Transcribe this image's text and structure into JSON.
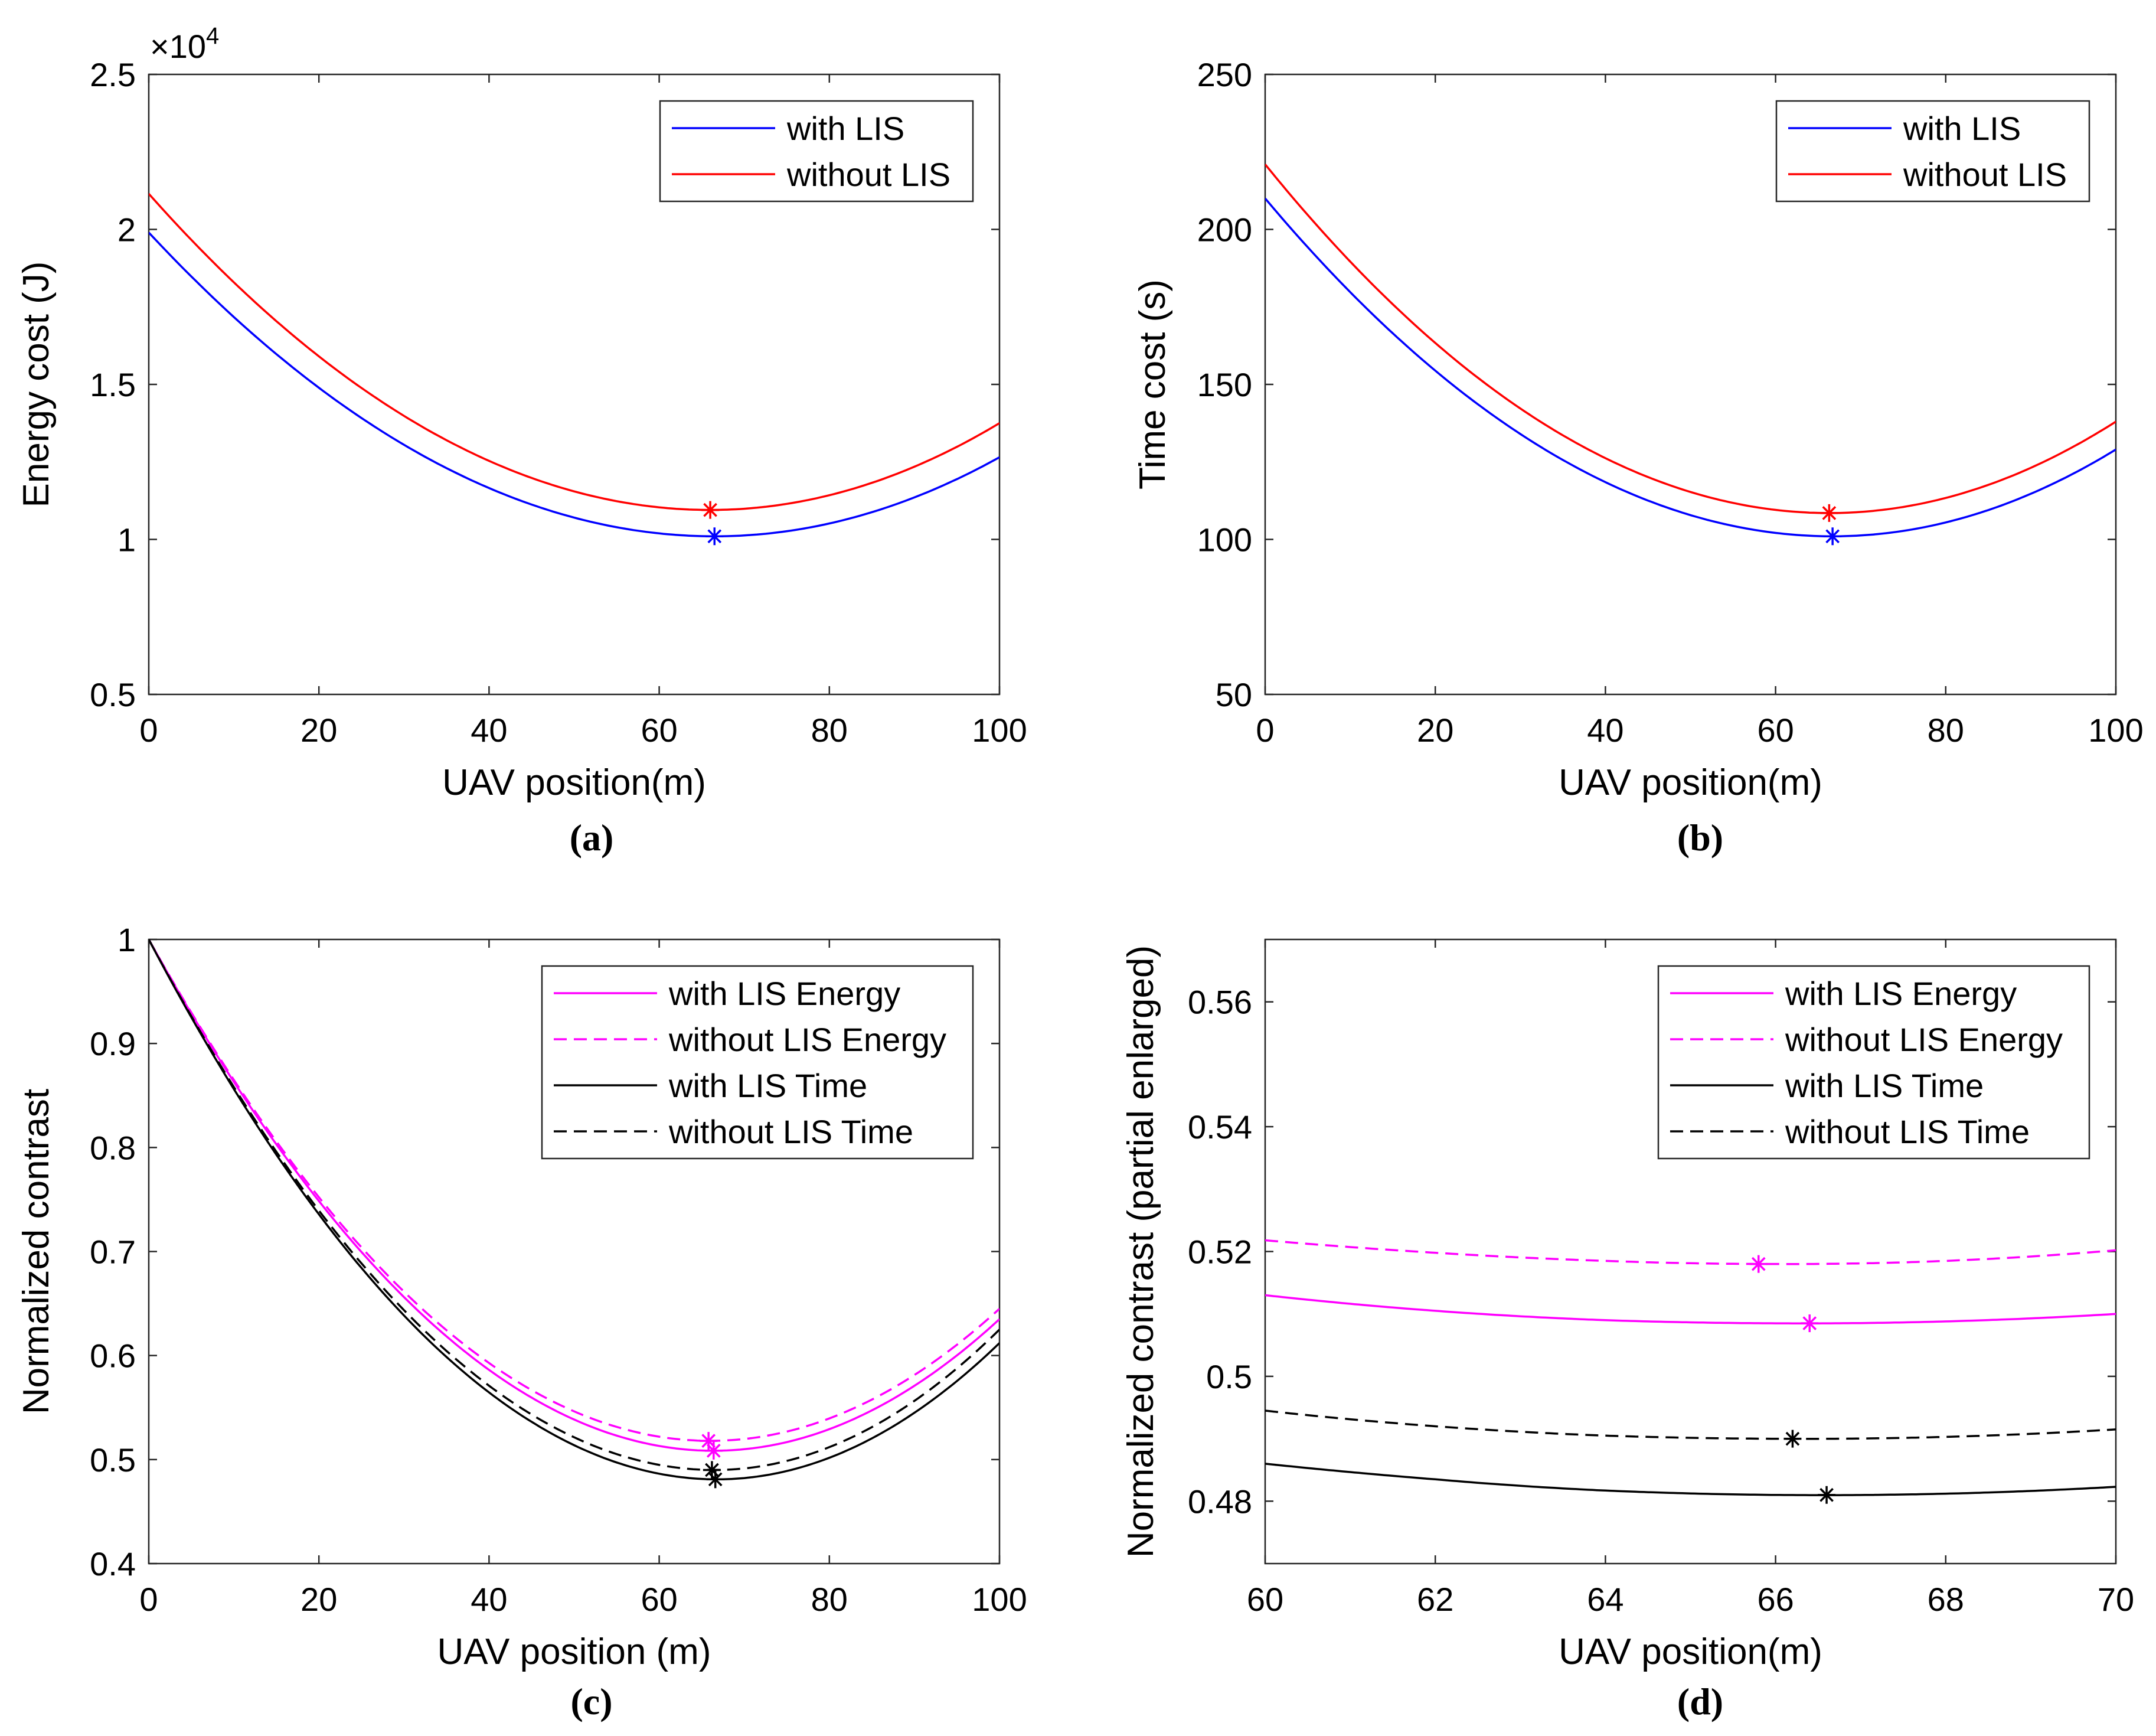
{
  "chart_data": [
    {
      "type": "line",
      "caption": "(a)",
      "xlabel": "UAV position(m)",
      "ylabel": "Energy cost (J)",
      "xlim": [
        0,
        100
      ],
      "ylim": [
        0.5,
        2.5
      ],
      "xticks": [
        0,
        20,
        40,
        60,
        80,
        100
      ],
      "yticks": [
        0.5,
        1,
        1.5,
        2,
        2.5
      ],
      "ytick_labels": [
        "0.5",
        "1",
        "1.5",
        "2",
        "2.5"
      ],
      "yscale_label": "×10",
      "yscale_exponent": "4",
      "legend": "top-right",
      "series": [
        {
          "name": "with LIS",
          "color": "#0000ff",
          "dash": "solid",
          "min_x": 66.5,
          "min_y": 1.01,
          "y_at_0": 1.99,
          "y_at_100": 1.265,
          "marker": [
            66.5,
            1.01
          ]
        },
        {
          "name": "without LIS",
          "color": "#ff0000",
          "dash": "solid",
          "min_x": 66.0,
          "min_y": 1.095,
          "y_at_0": 2.115,
          "y_at_100": 1.375,
          "marker": [
            66.0,
            1.095
          ]
        }
      ]
    },
    {
      "type": "line",
      "caption": "(b)",
      "xlabel": "UAV position(m)",
      "ylabel": "Time cost (s)",
      "xlim": [
        0,
        100
      ],
      "ylim": [
        50,
        250
      ],
      "xticks": [
        0,
        20,
        40,
        60,
        80,
        100
      ],
      "yticks": [
        50,
        100,
        150,
        200,
        250
      ],
      "ytick_labels": [
        "50",
        "100",
        "150",
        "200",
        "250"
      ],
      "legend": "top-right",
      "series": [
        {
          "name": "with LIS",
          "color": "#0000ff",
          "dash": "solid",
          "min_x": 66.7,
          "min_y": 101,
          "y_at_0": 210,
          "y_at_100": 129,
          "marker": [
            66.7,
            101
          ]
        },
        {
          "name": "without LIS",
          "color": "#ff0000",
          "dash": "solid",
          "min_x": 66.3,
          "min_y": 108.5,
          "y_at_0": 221,
          "y_at_100": 138,
          "marker": [
            66.3,
            108.5
          ]
        }
      ]
    },
    {
      "type": "line",
      "caption": "(c)",
      "xlabel": "UAV position (m)",
      "ylabel": "Normalized contrast",
      "xlim": [
        0,
        100
      ],
      "ylim": [
        0.4,
        1
      ],
      "xticks": [
        0,
        20,
        40,
        60,
        80,
        100
      ],
      "yticks": [
        0.4,
        0.5,
        0.6,
        0.7,
        0.8,
        0.9,
        1
      ],
      "ytick_labels": [
        "0.4",
        "0.5",
        "0.6",
        "0.7",
        "0.8",
        "0.9",
        "1"
      ],
      "legend": "top-right",
      "series": [
        {
          "name": "with LIS Energy",
          "color": "#ff00ff",
          "dash": "solid",
          "min_x": 66.4,
          "min_y": 0.5085,
          "y_at_0": 1.0,
          "y_at_100": 0.635,
          "marker": [
            66.4,
            0.5085
          ]
        },
        {
          "name": "without LIS Energy",
          "color": "#ff00ff",
          "dash": "dashed",
          "min_x": 66.0,
          "min_y": 0.518,
          "y_at_0": 1.0,
          "y_at_100": 0.645,
          "marker": [
            65.8,
            0.518
          ]
        },
        {
          "name": "with LIS Time",
          "color": "#000000",
          "dash": "solid",
          "min_x": 66.8,
          "min_y": 0.481,
          "y_at_0": 1.0,
          "y_at_100": 0.612,
          "marker": [
            66.6,
            0.481
          ]
        },
        {
          "name": "without LIS Time",
          "color": "#000000",
          "dash": "dashed",
          "min_x": 66.5,
          "min_y": 0.49,
          "y_at_0": 1.0,
          "y_at_100": 0.625,
          "marker": [
            66.2,
            0.49
          ]
        }
      ]
    },
    {
      "type": "line",
      "caption": "(d)",
      "xlabel": "UAV position(m)",
      "ylabel": "Normalized contrast (partial enlarged)",
      "xlim": [
        60,
        70
      ],
      "ylim": [
        0.47,
        0.57
      ],
      "xticks": [
        60,
        62,
        64,
        66,
        68,
        70
      ],
      "yticks": [
        0.48,
        0.5,
        0.52,
        0.54,
        0.56
      ],
      "ytick_labels": [
        "0.48",
        "0.5",
        "0.52",
        "0.54",
        "0.56"
      ],
      "legend": "top-right",
      "series": [
        {
          "name": "with LIS Energy",
          "color": "#ff00ff",
          "dash": "solid",
          "x": [
            60,
            62,
            64,
            66,
            68,
            70
          ],
          "y": [
            0.513,
            0.5105,
            0.509,
            0.5085,
            0.5088,
            0.51
          ],
          "marker": [
            66.4,
            0.5085
          ]
        },
        {
          "name": "without LIS Energy",
          "color": "#ff00ff",
          "dash": "dashed",
          "x": [
            60,
            62,
            64,
            66,
            68,
            70
          ],
          "y": [
            0.5218,
            0.5198,
            0.5185,
            0.518,
            0.5185,
            0.5202
          ],
          "marker": [
            65.8,
            0.518
          ]
        },
        {
          "name": "with LIS Time",
          "color": "#000000",
          "dash": "solid",
          "x": [
            60,
            62,
            64,
            66,
            68,
            70
          ],
          "y": [
            0.486,
            0.4835,
            0.4817,
            0.481,
            0.4812,
            0.4823
          ],
          "marker": [
            66.6,
            0.481
          ]
        },
        {
          "name": "without LIS Time",
          "color": "#000000",
          "dash": "dashed",
          "x": [
            60,
            62,
            64,
            66,
            68,
            70
          ],
          "y": [
            0.4945,
            0.492,
            0.4905,
            0.49,
            0.4903,
            0.4915
          ],
          "marker": [
            66.2,
            0.49
          ]
        }
      ]
    }
  ]
}
